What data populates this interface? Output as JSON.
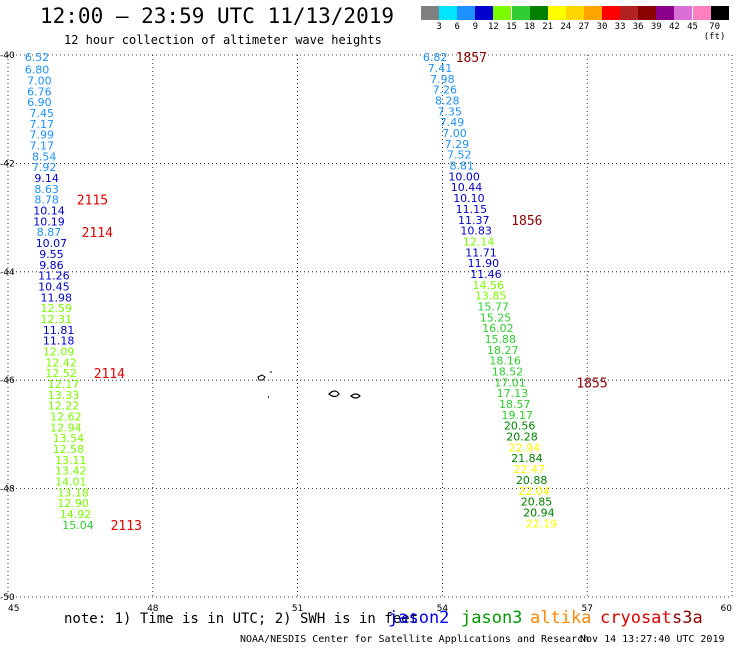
{
  "title": "12:00 – 23:59 UTC 11/13/2019",
  "subtitle": "12 hour collection of altimeter wave heights",
  "colorbar": [
    {
      "label": "3",
      "color": "#808080"
    },
    {
      "label": "6",
      "color": "#00e5ff"
    },
    {
      "label": "9",
      "color": "#1e90ff"
    },
    {
      "label": "12",
      "color": "#0000cd"
    },
    {
      "label": "15",
      "color": "#7cfc00"
    },
    {
      "label": "18",
      "color": "#32cd32"
    },
    {
      "label": "21",
      "color": "#008000"
    },
    {
      "label": "24",
      "color": "#ffff00"
    },
    {
      "label": "27",
      "color": "#ffd700"
    },
    {
      "label": "30",
      "color": "#ffa500"
    },
    {
      "label": "33",
      "color": "#ff0000"
    },
    {
      "label": "36",
      "color": "#b22222"
    },
    {
      "label": "39",
      "color": "#8b0000"
    },
    {
      "label": "42",
      "color": "#8b008b"
    },
    {
      "label": "45",
      "color": "#da70d6"
    },
    {
      "label": "70 (ft)",
      "color": "#ff80c0"
    },
    {
      "label": "",
      "color": "#000000"
    }
  ],
  "axes": {
    "lon_ticks": [
      "45",
      "48",
      "51",
      "54",
      "57",
      "60"
    ],
    "lat_ticks": [
      "-40",
      "-42",
      "-44",
      "-46",
      "-48",
      "-50"
    ],
    "lon_range": [
      45,
      60
    ],
    "lat_range": [
      -40,
      -50
    ]
  },
  "note": "note:  1) Time is in UTC; 2) SWH is in feet",
  "satellites": [
    {
      "name": "jason2",
      "color": "#0000ff"
    },
    {
      "name": "jason3",
      "color": "#009900"
    },
    {
      "name": "altika",
      "color": "#ff8800"
    },
    {
      "name": "cryosat",
      "color": "#dd0000"
    },
    {
      "name": "s3a",
      "color": "#8b0000"
    }
  ],
  "credit": "NOAA/NESDIS Center for Satellite Applications and Research",
  "timestamp": "Nov 14 13:27:40 UTC 2019",
  "tracks": [
    {
      "name": "west-track",
      "points": [
        {
          "lon": 45.6,
          "lat": -40.04,
          "swh": "6.52",
          "color": "#1e90ff"
        },
        {
          "lon": 45.6,
          "lat": -40.27,
          "swh": "6.80",
          "color": "#1e90ff"
        },
        {
          "lon": 45.65,
          "lat": -40.47,
          "swh": "7.00",
          "color": "#1e90ff"
        },
        {
          "lon": 45.65,
          "lat": -40.67,
          "swh": "6.76",
          "color": "#1e90ff"
        },
        {
          "lon": 45.65,
          "lat": -40.87,
          "swh": "6.90",
          "color": "#1e90ff"
        },
        {
          "lon": 45.7,
          "lat": -41.07,
          "swh": "7.45",
          "color": "#1e90ff"
        },
        {
          "lon": 45.7,
          "lat": -41.27,
          "swh": "7.17",
          "color": "#1e90ff"
        },
        {
          "lon": 45.7,
          "lat": -41.47,
          "swh": "7.99",
          "color": "#1e90ff"
        },
        {
          "lon": 45.7,
          "lat": -41.67,
          "swh": "7.17",
          "color": "#1e90ff"
        },
        {
          "lon": 45.75,
          "lat": -41.87,
          "swh": "8.54",
          "color": "#1e90ff"
        },
        {
          "lon": 45.75,
          "lat": -42.07,
          "swh": "7.92",
          "color": "#1e90ff"
        },
        {
          "lon": 45.8,
          "lat": -42.27,
          "swh": "9.14",
          "color": "#0000cd"
        },
        {
          "lon": 45.8,
          "lat": -42.47,
          "swh": "8.63",
          "color": "#1e90ff"
        },
        {
          "lon": 45.8,
          "lat": -42.67,
          "swh": "8.78",
          "color": "#1e90ff"
        },
        {
          "lon": 45.85,
          "lat": -42.87,
          "swh": "10.14",
          "color": "#0000cd"
        },
        {
          "lon": 45.85,
          "lat": -43.07,
          "swh": "10.19",
          "color": "#0000cd"
        },
        {
          "lon": 45.85,
          "lat": -43.27,
          "swh": "8.87",
          "color": "#1e90ff"
        },
        {
          "lon": 45.9,
          "lat": -43.47,
          "swh": "10.07",
          "color": "#0000cd"
        },
        {
          "lon": 45.9,
          "lat": -43.67,
          "swh": "9.55",
          "color": "#0000cd"
        },
        {
          "lon": 45.9,
          "lat": -43.87,
          "swh": "9.86",
          "color": "#0000cd"
        },
        {
          "lon": 45.95,
          "lat": -44.07,
          "swh": "11.26",
          "color": "#0000cd"
        },
        {
          "lon": 45.95,
          "lat": -44.27,
          "swh": "10.45",
          "color": "#0000cd"
        },
        {
          "lon": 46.0,
          "lat": -44.47,
          "swh": "11.98",
          "color": "#0000cd"
        },
        {
          "lon": 46.0,
          "lat": -44.67,
          "swh": "12.59",
          "color": "#7cfc00"
        },
        {
          "lon": 46.0,
          "lat": -44.87,
          "swh": "12.31",
          "color": "#7cfc00"
        },
        {
          "lon": 46.05,
          "lat": -45.07,
          "swh": "11.81",
          "color": "#0000cd"
        },
        {
          "lon": 46.05,
          "lat": -45.27,
          "swh": "11.18",
          "color": "#0000cd"
        },
        {
          "lon": 46.05,
          "lat": -45.47,
          "swh": "12.09",
          "color": "#7cfc00"
        },
        {
          "lon": 46.1,
          "lat": -45.67,
          "swh": "12.42",
          "color": "#7cfc00"
        },
        {
          "lon": 46.1,
          "lat": -45.87,
          "swh": "12.52",
          "color": "#7cfc00"
        },
        {
          "lon": 46.15,
          "lat": -46.07,
          "swh": "12.17",
          "color": "#7cfc00"
        },
        {
          "lon": 46.15,
          "lat": -46.27,
          "swh": "13.33",
          "color": "#7cfc00"
        },
        {
          "lon": 46.15,
          "lat": -46.47,
          "swh": "12.22",
          "color": "#7cfc00"
        },
        {
          "lon": 46.2,
          "lat": -46.67,
          "swh": "12.62",
          "color": "#7cfc00"
        },
        {
          "lon": 46.2,
          "lat": -46.87,
          "swh": "12.94",
          "color": "#7cfc00"
        },
        {
          "lon": 46.25,
          "lat": -47.07,
          "swh": "13.54",
          "color": "#7cfc00"
        },
        {
          "lon": 46.25,
          "lat": -47.27,
          "swh": "12.58",
          "color": "#7cfc00"
        },
        {
          "lon": 46.3,
          "lat": -47.47,
          "swh": "13.11",
          "color": "#7cfc00"
        },
        {
          "lon": 46.3,
          "lat": -47.67,
          "swh": "13.42",
          "color": "#7cfc00"
        },
        {
          "lon": 46.3,
          "lat": -47.87,
          "swh": "14.01",
          "color": "#7cfc00"
        },
        {
          "lon": 46.35,
          "lat": -48.07,
          "swh": "13.18",
          "color": "#7cfc00"
        },
        {
          "lon": 46.35,
          "lat": -48.27,
          "swh": "12.90",
          "color": "#7cfc00"
        },
        {
          "lon": 46.4,
          "lat": -48.47,
          "swh": "14.92",
          "color": "#7cfc00"
        },
        {
          "lon": 46.45,
          "lat": -48.67,
          "swh": "15.04",
          "color": "#32cd32"
        }
      ]
    },
    {
      "name": "east-track",
      "points": [
        {
          "lon": 53.85,
          "lat": -40.04,
          "swh": "6.82",
          "color": "#1e90ff"
        },
        {
          "lon": 53.95,
          "lat": -40.24,
          "swh": "7.41",
          "color": "#1e90ff"
        },
        {
          "lon": 54.0,
          "lat": -40.44,
          "swh": "7.98",
          "color": "#1e90ff"
        },
        {
          "lon": 54.05,
          "lat": -40.64,
          "swh": "7.26",
          "color": "#1e90ff"
        },
        {
          "lon": 54.1,
          "lat": -40.84,
          "swh": "8.28",
          "color": "#1e90ff"
        },
        {
          "lon": 54.15,
          "lat": -41.04,
          "swh": "7.35",
          "color": "#1e90ff"
        },
        {
          "lon": 54.2,
          "lat": -41.24,
          "swh": "7.49",
          "color": "#1e90ff"
        },
        {
          "lon": 54.25,
          "lat": -41.44,
          "swh": "7.00",
          "color": "#1e90ff"
        },
        {
          "lon": 54.3,
          "lat": -41.64,
          "swh": "7.29",
          "color": "#1e90ff"
        },
        {
          "lon": 54.35,
          "lat": -41.84,
          "swh": "7.52",
          "color": "#1e90ff"
        },
        {
          "lon": 54.4,
          "lat": -42.04,
          "swh": "8.81",
          "color": "#1e90ff"
        },
        {
          "lon": 54.45,
          "lat": -42.24,
          "swh": "10.00",
          "color": "#0000cd"
        },
        {
          "lon": 54.5,
          "lat": -42.44,
          "swh": "10.44",
          "color": "#0000cd"
        },
        {
          "lon": 54.55,
          "lat": -42.64,
          "swh": "10.10",
          "color": "#0000cd"
        },
        {
          "lon": 54.6,
          "lat": -42.84,
          "swh": "11.15",
          "color": "#0000cd"
        },
        {
          "lon": 54.65,
          "lat": -43.04,
          "swh": "11.37",
          "color": "#0000cd"
        },
        {
          "lon": 54.7,
          "lat": -43.24,
          "swh": "10.83",
          "color": "#0000cd"
        },
        {
          "lon": 54.75,
          "lat": -43.44,
          "swh": "12.14",
          "color": "#7cfc00"
        },
        {
          "lon": 54.8,
          "lat": -43.64,
          "swh": "11.71",
          "color": "#0000cd"
        },
        {
          "lon": 54.85,
          "lat": -43.84,
          "swh": "11.90",
          "color": "#0000cd"
        },
        {
          "lon": 54.9,
          "lat": -44.04,
          "swh": "11.46",
          "color": "#0000cd"
        },
        {
          "lon": 54.95,
          "lat": -44.24,
          "swh": "14.56",
          "color": "#7cfc00"
        },
        {
          "lon": 55.0,
          "lat": -44.44,
          "swh": "13.85",
          "color": "#7cfc00"
        },
        {
          "lon": 55.05,
          "lat": -44.64,
          "swh": "15.77",
          "color": "#32cd32"
        },
        {
          "lon": 55.1,
          "lat": -44.84,
          "swh": "15.25",
          "color": "#32cd32"
        },
        {
          "lon": 55.15,
          "lat": -45.04,
          "swh": "16.02",
          "color": "#32cd32"
        },
        {
          "lon": 55.2,
          "lat": -45.24,
          "swh": "15.88",
          "color": "#32cd32"
        },
        {
          "lon": 55.25,
          "lat": -45.44,
          "swh": "18.27",
          "color": "#32cd32"
        },
        {
          "lon": 55.3,
          "lat": -45.64,
          "swh": "18.16",
          "color": "#32cd32"
        },
        {
          "lon": 55.35,
          "lat": -45.84,
          "swh": "18.52",
          "color": "#32cd32"
        },
        {
          "lon": 55.4,
          "lat": -46.04,
          "swh": "17.01",
          "color": "#32cd32"
        },
        {
          "lon": 55.45,
          "lat": -46.24,
          "swh": "17.13",
          "color": "#32cd32"
        },
        {
          "lon": 55.5,
          "lat": -46.44,
          "swh": "18.57",
          "color": "#32cd32"
        },
        {
          "lon": 55.55,
          "lat": -46.64,
          "swh": "19.17",
          "color": "#32cd32"
        },
        {
          "lon": 55.6,
          "lat": -46.84,
          "swh": "20.56",
          "color": "#008000"
        },
        {
          "lon": 55.65,
          "lat": -47.04,
          "swh": "20.28",
          "color": "#008000"
        },
        {
          "lon": 55.7,
          "lat": -47.24,
          "swh": "22.94",
          "color": "#ffff00"
        },
        {
          "lon": 55.75,
          "lat": -47.44,
          "swh": "21.84",
          "color": "#008000"
        },
        {
          "lon": 55.8,
          "lat": -47.64,
          "swh": "22.47",
          "color": "#ffff00"
        },
        {
          "lon": 55.85,
          "lat": -47.84,
          "swh": "20.88",
          "color": "#008000"
        },
        {
          "lon": 55.9,
          "lat": -48.04,
          "swh": "22.04",
          "color": "#ffff00"
        },
        {
          "lon": 55.95,
          "lat": -48.24,
          "swh": "20.85",
          "color": "#008000"
        },
        {
          "lon": 56.0,
          "lat": -48.44,
          "swh": "20.94",
          "color": "#008000"
        },
        {
          "lon": 56.05,
          "lat": -48.64,
          "swh": "22.19",
          "color": "#ffff00"
        }
      ]
    }
  ],
  "time_labels": [
    {
      "text": "2115",
      "lon": 46.75,
      "lat": -42.67,
      "color": "#dd0000"
    },
    {
      "text": "2114",
      "lon": 46.85,
      "lat": -43.27,
      "color": "#dd0000"
    },
    {
      "text": "2114",
      "lon": 47.1,
      "lat": -45.87,
      "color": "#dd0000"
    },
    {
      "text": "2113",
      "lon": 47.45,
      "lat": -48.67,
      "color": "#dd0000"
    },
    {
      "text": "1857",
      "lon": 54.6,
      "lat": -40.04,
      "color": "#8b0000"
    },
    {
      "text": "1856",
      "lon": 55.75,
      "lat": -43.04,
      "color": "#8b0000"
    },
    {
      "text": "1855",
      "lon": 57.1,
      "lat": -46.04,
      "color": "#8b0000"
    }
  ]
}
